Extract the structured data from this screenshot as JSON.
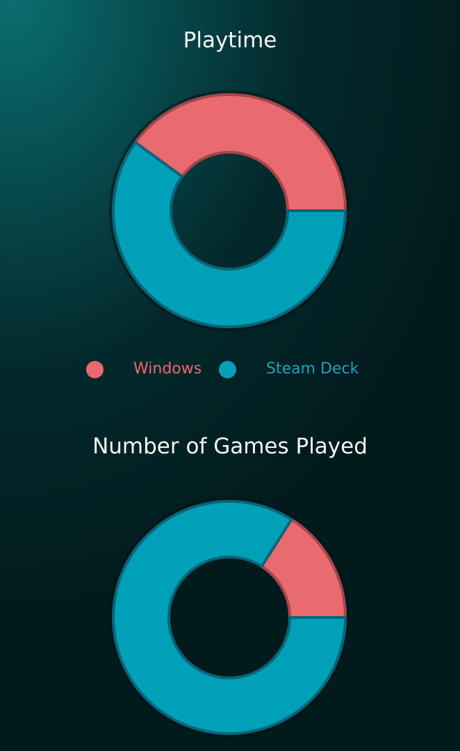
{
  "chart_data": [
    {
      "type": "pie",
      "variant": "donut",
      "title": "Playtime",
      "slices": [
        {
          "label": "Windows",
          "value": 40,
          "color": "#e96b70"
        },
        {
          "label": "Steam Deck",
          "value": 60,
          "color": "#00a0b9"
        }
      ],
      "legend": "bottom"
    },
    {
      "type": "pie",
      "variant": "donut",
      "title": "Number of Games Played",
      "slices": [
        {
          "label": "Windows",
          "value": 16,
          "color": "#e96b70"
        },
        {
          "label": "Steam Deck",
          "value": 84,
          "color": "#00a0b9"
        }
      ]
    }
  ],
  "legend": {
    "items": [
      {
        "label": "Windows",
        "color": "#e96b70"
      },
      {
        "label": "Steam Deck",
        "color": "#00a0b9"
      }
    ]
  }
}
